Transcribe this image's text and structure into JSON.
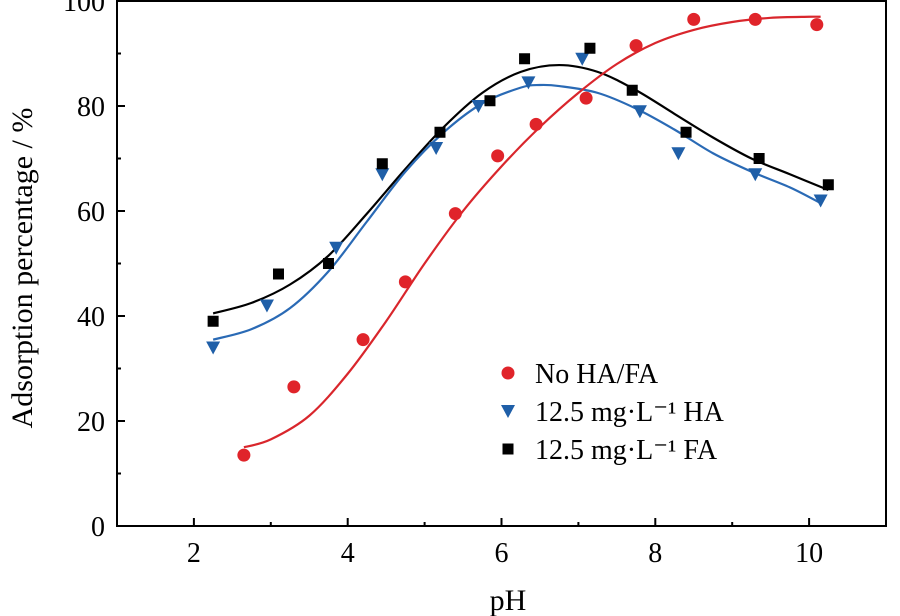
{
  "chart_data": {
    "type": "scatter",
    "xlabel": "pH",
    "ylabel": "Adsorption percentage / %",
    "xlim": [
      1,
      11
    ],
    "ylim": [
      0,
      100
    ],
    "x_ticks": [
      "2",
      "4",
      "6",
      "8",
      "10"
    ],
    "y_ticks": [
      "0",
      "20",
      "40",
      "60",
      "80",
      "100"
    ],
    "legend_position": "lower-right",
    "series": [
      {
        "name": "No HA/FA",
        "marker": "circle",
        "color": "#e0242a",
        "x": [
          2.65,
          3.3,
          4.2,
          4.75,
          5.4,
          5.95,
          6.45,
          7.1,
          7.75,
          8.5,
          9.3,
          10.1
        ],
        "y": [
          13.5,
          26.5,
          35.5,
          46.5,
          59.5,
          70.5,
          76.5,
          81.5,
          91.5,
          96.5,
          96.5,
          95.5
        ],
        "fit": {
          "color": "#d9262c",
          "x": [
            2.65,
            3.0,
            3.5,
            4.0,
            4.5,
            5.0,
            5.5,
            6.0,
            6.5,
            7.0,
            7.5,
            8.0,
            8.5,
            9.0,
            9.5,
            10.0,
            10.15
          ],
          "y": [
            15,
            16.5,
            21,
            29,
            39,
            50,
            60,
            68.5,
            76,
            82.5,
            88,
            92,
            94.5,
            96,
            96.8,
            97,
            97
          ]
        }
      },
      {
        "name": "12.5 mg·L⁻¹ HA",
        "marker": "triangle-down",
        "color": "#1f5fa8",
        "x": [
          2.25,
          2.95,
          3.85,
          4.45,
          5.15,
          5.7,
          6.35,
          7.05,
          7.8,
          8.3,
          9.3,
          10.15
        ],
        "y": [
          34,
          42,
          53,
          67,
          72,
          80,
          84.5,
          89,
          79,
          71,
          67,
          62
        ],
        "fit": {
          "color": "#2a6ab5",
          "x": [
            2.25,
            2.75,
            3.25,
            3.75,
            4.25,
            4.75,
            5.25,
            5.75,
            6.25,
            6.5,
            6.75,
            7.25,
            7.75,
            8.25,
            8.75,
            9.25,
            9.75,
            10.15
          ],
          "y": [
            35.5,
            37.5,
            41.5,
            48.5,
            58,
            67.5,
            75,
            80.5,
            83.5,
            84,
            83.8,
            82.5,
            79.5,
            75.5,
            71,
            67.5,
            64.5,
            61.5
          ]
        }
      },
      {
        "name": "12.5 mg·L⁻¹ FA",
        "marker": "square",
        "color": "#000000",
        "x": [
          2.25,
          3.1,
          3.75,
          4.45,
          5.2,
          5.85,
          6.3,
          7.15,
          7.7,
          8.4,
          9.35,
          10.25
        ],
        "y": [
          39,
          48,
          50,
          69,
          75,
          81,
          89,
          91,
          83,
          75,
          70,
          65
        ],
        "fit": {
          "color": "#000000",
          "x": [
            2.25,
            2.75,
            3.25,
            3.75,
            4.25,
            4.75,
            5.25,
            5.75,
            6.25,
            6.75,
            7.25,
            7.75,
            8.25,
            8.75,
            9.25,
            9.75,
            10.25
          ],
          "y": [
            40.5,
            42.5,
            46,
            51.5,
            59.5,
            68,
            76,
            82.5,
            86.5,
            87.8,
            86.5,
            83,
            78.5,
            74,
            70,
            67,
            64
          ]
        }
      }
    ]
  }
}
